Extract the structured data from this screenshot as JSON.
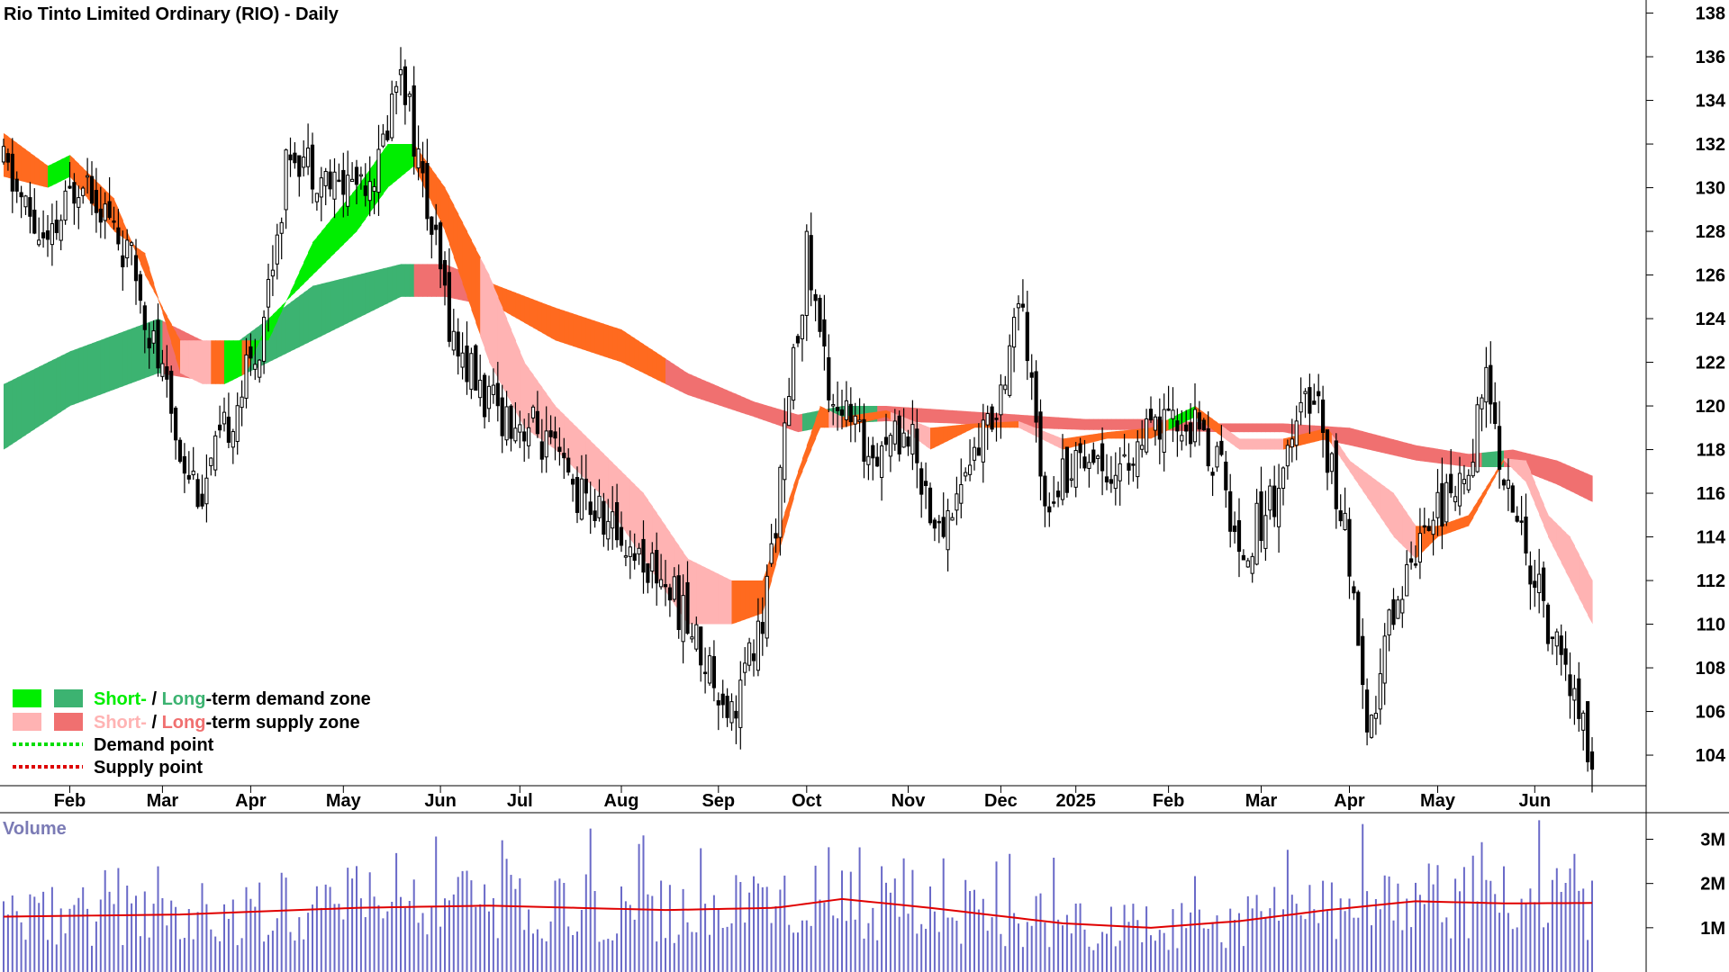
{
  "title": "Rio Tinto Limited Ordinary (RIO) - Daily",
  "colors": {
    "short_demand": "#00ee00",
    "long_demand": "#3cb371",
    "short_supply": "#ffb3b3",
    "long_supply": "#f07070",
    "short_transition": "#ff6a1f",
    "candle": "#000000",
    "volume_bar": "#6a6ac8",
    "volume_avg": "#e00000",
    "demand_point": "#00dd00",
    "supply_point": "#dd0000"
  },
  "legend": {
    "zone1_short": "Short-",
    "zone1_sep": " / ",
    "zone1_long": "Long",
    "zone1_rest": "-term demand zone",
    "zone2_short": "Short-",
    "zone2_sep": " / ",
    "zone2_long": "Long",
    "zone2_rest": "-term supply zone",
    "demand_point": "Demand point",
    "supply_point": "Supply point"
  },
  "volume_panel": {
    "title": "Volume"
  },
  "chart_data": {
    "type": "candlestick",
    "title": "Rio Tinto Limited Ordinary (RIO) - Daily",
    "price_axis": {
      "ylim": [
        102.6,
        138.6
      ],
      "ticks": [
        104,
        106,
        108,
        110,
        112,
        114,
        116,
        118,
        120,
        122,
        124,
        126,
        128,
        130,
        132,
        134,
        136,
        138
      ]
    },
    "x_axis": {
      "labels": [
        "Feb",
        "Mar",
        "Apr",
        "May",
        "Jun",
        "Jul",
        "Aug",
        "Sep",
        "Oct",
        "Nov",
        "Dec",
        "2025",
        "Feb",
        "Mar",
        "Apr",
        "May",
        "Jun"
      ],
      "label_day_index": [
        15,
        36,
        56,
        77,
        99,
        117,
        140,
        162,
        182,
        205,
        226,
        243,
        264,
        285,
        305,
        325,
        347
      ]
    },
    "price_path": [
      [
        0,
        131
      ],
      [
        10,
        127
      ],
      [
        18,
        131
      ],
      [
        30,
        126
      ],
      [
        40,
        118
      ],
      [
        45,
        116
      ],
      [
        58,
        123
      ],
      [
        65,
        132
      ],
      [
        75,
        130
      ],
      [
        85,
        131
      ],
      [
        90,
        136
      ],
      [
        95,
        130
      ],
      [
        102,
        123
      ],
      [
        110,
        120
      ],
      [
        120,
        119
      ],
      [
        130,
        116
      ],
      [
        140,
        114
      ],
      [
        150,
        112
      ],
      [
        165,
        106
      ],
      [
        172,
        110
      ],
      [
        178,
        120
      ],
      [
        182,
        127
      ],
      [
        187,
        121
      ],
      [
        195,
        118
      ],
      [
        205,
        119
      ],
      [
        212,
        114
      ],
      [
        218,
        117
      ],
      [
        225,
        120
      ],
      [
        230,
        125
      ],
      [
        236,
        116
      ],
      [
        245,
        118
      ],
      [
        252,
        117
      ],
      [
        262,
        119
      ],
      [
        270,
        119
      ],
      [
        276,
        117
      ],
      [
        280,
        113
      ],
      [
        288,
        116
      ],
      [
        297,
        121
      ],
      [
        305,
        113
      ],
      [
        309,
        104
      ],
      [
        314,
        110
      ],
      [
        322,
        115
      ],
      [
        330,
        116
      ],
      [
        336,
        121
      ],
      [
        341,
        116
      ],
      [
        350,
        110
      ],
      [
        355,
        107
      ],
      [
        360,
        104
      ]
    ],
    "short_term_band": [
      [
        0,
        130.5,
        132.5
      ],
      [
        10,
        130,
        131
      ],
      [
        15,
        130.5,
        131.5
      ],
      [
        25,
        128,
        129.5
      ],
      [
        32,
        127,
        126
      ],
      [
        40,
        121.5,
        123
      ],
      [
        45,
        121,
        123
      ],
      [
        50,
        121,
        123
      ],
      [
        55,
        121.5,
        123
      ],
      [
        60,
        124,
        123
      ],
      [
        70,
        126,
        127.5
      ],
      [
        80,
        128,
        130
      ],
      [
        87,
        130,
        132
      ],
      [
        93,
        131,
        132
      ],
      [
        100,
        128,
        130
      ],
      [
        110,
        122,
        126
      ],
      [
        118,
        119,
        122
      ],
      [
        125,
        118,
        120
      ],
      [
        135,
        116,
        118
      ],
      [
        145,
        113,
        116
      ],
      [
        155,
        110,
        113
      ],
      [
        165,
        110,
        112
      ],
      [
        172,
        110.5,
        112
      ],
      [
        180,
        116.5,
        117
      ],
      [
        185,
        119,
        120
      ],
      [
        190,
        119,
        119.5
      ],
      [
        200,
        119.5,
        119.8
      ],
      [
        210,
        118,
        119
      ],
      [
        220,
        119,
        119.2
      ],
      [
        230,
        119,
        119.3
      ],
      [
        240,
        118,
        118.5
      ],
      [
        250,
        118.5,
        118.8
      ],
      [
        260,
        118.5,
        119
      ],
      [
        270,
        119.5,
        120
      ],
      [
        280,
        118,
        118.5
      ],
      [
        290,
        118,
        118.5
      ],
      [
        300,
        118.5,
        119
      ],
      [
        305,
        117,
        117.5
      ],
      [
        315,
        114,
        116
      ],
      [
        320,
        113,
        114.5
      ],
      [
        325,
        114,
        114.5
      ],
      [
        332,
        114.5,
        115
      ],
      [
        340,
        117.5,
        117.6
      ],
      [
        345,
        116.5,
        117.5
      ],
      [
        350,
        114,
        115
      ],
      [
        355,
        112,
        114
      ],
      [
        360,
        110,
        112
      ]
    ],
    "long_term_band": [
      [
        0,
        118,
        121
      ],
      [
        15,
        120,
        122.5
      ],
      [
        35,
        121.5,
        124
      ],
      [
        50,
        121,
        122.5
      ],
      [
        70,
        123,
        125.5
      ],
      [
        90,
        125,
        126.5
      ],
      [
        100,
        125,
        126.5
      ],
      [
        112,
        124.5,
        125.5
      ],
      [
        125,
        123,
        124.5
      ],
      [
        140,
        122,
        123.5
      ],
      [
        155,
        120.5,
        121.5
      ],
      [
        170,
        119.5,
        120.2
      ],
      [
        180,
        118.8,
        119.6
      ],
      [
        190,
        119.2,
        120
      ],
      [
        200,
        119.3,
        120
      ],
      [
        215,
        119.2,
        119.8
      ],
      [
        230,
        119,
        119.6
      ],
      [
        245,
        118.9,
        119.4
      ],
      [
        260,
        118.9,
        119.4
      ],
      [
        275,
        118.8,
        119.2
      ],
      [
        290,
        118.8,
        119.2
      ],
      [
        305,
        118.2,
        119
      ],
      [
        320,
        117.5,
        118.2
      ],
      [
        332,
        117.2,
        117.8
      ],
      [
        342,
        117.2,
        118
      ],
      [
        352,
        116.4,
        117.5
      ],
      [
        360,
        115.6,
        116.8
      ]
    ],
    "volume_axis": {
      "ylim": [
        0,
        3600000
      ],
      "ticks": [
        {
          "value": 3000000,
          "label": "3M"
        },
        {
          "value": 2000000,
          "label": "2M"
        },
        {
          "value": 1000000,
          "label": "1M"
        }
      ]
    },
    "volume_avg_path": [
      [
        0,
        1250000
      ],
      [
        40,
        1300000
      ],
      [
        80,
        1450000
      ],
      [
        110,
        1500000
      ],
      [
        150,
        1400000
      ],
      [
        175,
        1450000
      ],
      [
        190,
        1650000
      ],
      [
        210,
        1450000
      ],
      [
        240,
        1100000
      ],
      [
        260,
        1000000
      ],
      [
        280,
        1150000
      ],
      [
        300,
        1400000
      ],
      [
        320,
        1600000
      ],
      [
        340,
        1550000
      ],
      [
        360,
        1560000
      ]
    ]
  }
}
